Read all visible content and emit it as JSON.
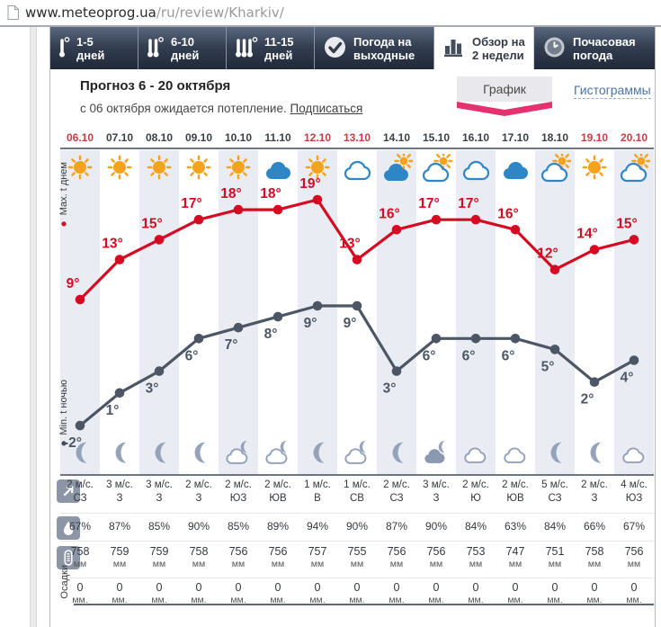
{
  "browser": {
    "url_host": "www.meteoprog.ua",
    "url_path": "/ru/review/Kharkiv/"
  },
  "tabs": [
    {
      "label1": "1-5",
      "label2": "дней",
      "icon": "thermometer-1-icon",
      "active": false
    },
    {
      "label1": "6-10",
      "label2": "дней",
      "icon": "thermometer-2-icon",
      "active": false
    },
    {
      "label1": "11-15",
      "label2": "дней",
      "icon": "thermometer-3-icon",
      "active": false
    },
    {
      "label1": "Погода на",
      "label2": "выходные",
      "icon": "check-icon",
      "active": false
    },
    {
      "label1": "Обзор на",
      "label2": "2 недели",
      "icon": "bar-chart-icon",
      "active": true
    },
    {
      "label1": "Почасовая",
      "label2": "погода",
      "icon": "clock-icon",
      "active": false
    }
  ],
  "header": {
    "title": "Прогноз 6 - 20 октября",
    "subtitle": "с 06 октября ожидается потепление.",
    "subscribe_link": "Подписаться",
    "view_graph": "График",
    "view_histogram": "Гистограммы"
  },
  "legend": {
    "max_label": "Max. t днем",
    "min_label": "Min. t ночью",
    "precip_label": "Осадки"
  },
  "colors": {
    "max_line": "#d40b22",
    "min_line": "#4c5665",
    "weekend_date": "#c33f42",
    "stripe": "#e9ecf2",
    "accent_pink": "#e5316d",
    "histogram_link": "#4d74a3",
    "day_cloud_blue": "#2e86c6",
    "sun_orange": "#f6a21d",
    "night_gray": "#95a3ba"
  },
  "chart_data": {
    "type": "line",
    "title": "Прогноз 6 - 20 октября",
    "categories": [
      "06.10",
      "07.10",
      "08.10",
      "09.10",
      "10.10",
      "11.10",
      "12.10",
      "13.10",
      "14.10",
      "15.10",
      "16.10",
      "17.10",
      "18.10",
      "19.10",
      "20.10"
    ],
    "weekend": [
      true,
      false,
      false,
      false,
      false,
      false,
      true,
      true,
      false,
      false,
      false,
      false,
      false,
      true,
      true
    ],
    "series": [
      {
        "name": "Max. t днем",
        "values": [
          9,
          13,
          15,
          17,
          18,
          18,
          19,
          13,
          16,
          17,
          17,
          16,
          12,
          14,
          15
        ],
        "color": "#d40b22",
        "unit": "°"
      },
      {
        "name": "Min. t ночью",
        "values": [
          -2,
          1,
          3,
          6,
          7,
          8,
          9,
          9,
          3,
          6,
          6,
          6,
          5,
          2,
          4
        ],
        "color": "#4c5665",
        "unit": "°"
      }
    ],
    "day_icons": [
      "sun",
      "sun",
      "sun",
      "sun",
      "sun",
      "cloud",
      "sun",
      "cloud-o",
      "cloud-sun",
      "cloud-sun-o",
      "cloud-o",
      "cloud",
      "cloud-sun-o",
      "sun",
      "cloud-sun-o"
    ],
    "night_icons": [
      "moon",
      "moon",
      "moon",
      "moon",
      "cloud-moon",
      "cloud-moon",
      "moon",
      "cloud-moon",
      "moon",
      "cloud-moon-f",
      "cloud-n",
      "cloud-n",
      "moon",
      "moon",
      "cloud-n"
    ],
    "legend_position": "left",
    "grid": "striped-columns"
  },
  "rows": {
    "wind": {
      "speeds": [
        "2 м/с.",
        "3 м/с.",
        "3 м/с.",
        "2 м/с.",
        "2 м/с.",
        "2 м/с.",
        "1 м/с.",
        "1 м/с.",
        "2 м/с.",
        "3 м/с.",
        "2 м/с.",
        "2 м/с.",
        "5 м/с.",
        "2 м/с.",
        "4 м/с."
      ],
      "dirs": [
        "СЗ",
        "З",
        "З",
        "З",
        "ЮЗ",
        "ЮВ",
        "В",
        "СВ",
        "СЗ",
        "З",
        "Ю",
        "ЮВ",
        "СЗ",
        "З",
        "ЮЗ"
      ]
    },
    "humidity": [
      "67%",
      "87%",
      "85%",
      "90%",
      "85%",
      "89%",
      "94%",
      "90%",
      "87%",
      "90%",
      "84%",
      "63%",
      "84%",
      "66%",
      "67%"
    ],
    "pressure": {
      "values": [
        "758",
        "759",
        "759",
        "758",
        "756",
        "756",
        "757",
        "755",
        "756",
        "756",
        "753",
        "747",
        "751",
        "758",
        "756"
      ],
      "unit": "мм"
    },
    "precipitation": {
      "values": [
        "0",
        "0",
        "0",
        "0",
        "0",
        "0",
        "0",
        "0",
        "0",
        "0",
        "0",
        "0",
        "0",
        "0",
        "0"
      ],
      "unit": "мм."
    }
  }
}
